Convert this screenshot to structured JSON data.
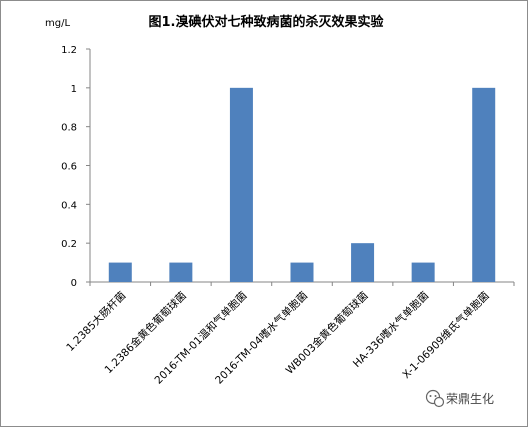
{
  "chart_data": {
    "type": "bar",
    "title": "图1.溴碘伏对七种致病菌的杀灭效果实验",
    "unit_label": "mg/L",
    "categories": [
      "1.2385大肠杆菌",
      "1.2386金黄色葡萄球菌",
      "2016-TM-01温和气单胞菌",
      "2016-TM-04嗜水气单胞菌",
      "WB003金黄色葡萄球菌",
      "HA-336嗜水气单胞菌",
      "X-1-06909维氏气单胞菌"
    ],
    "values": [
      0.1,
      0.1,
      1.0,
      0.1,
      0.2,
      0.1,
      1.0
    ],
    "ylim": [
      0,
      1.2
    ],
    "yticks": [
      "0",
      "0.2",
      "0.4",
      "0.6",
      "0.8",
      "1",
      "1.2"
    ],
    "grid": false,
    "bar_color": "#4f81bd",
    "xlabel": "",
    "ylabel": ""
  },
  "watermark": {
    "text": "荣鼎生化",
    "icon": "wechat-icon"
  }
}
